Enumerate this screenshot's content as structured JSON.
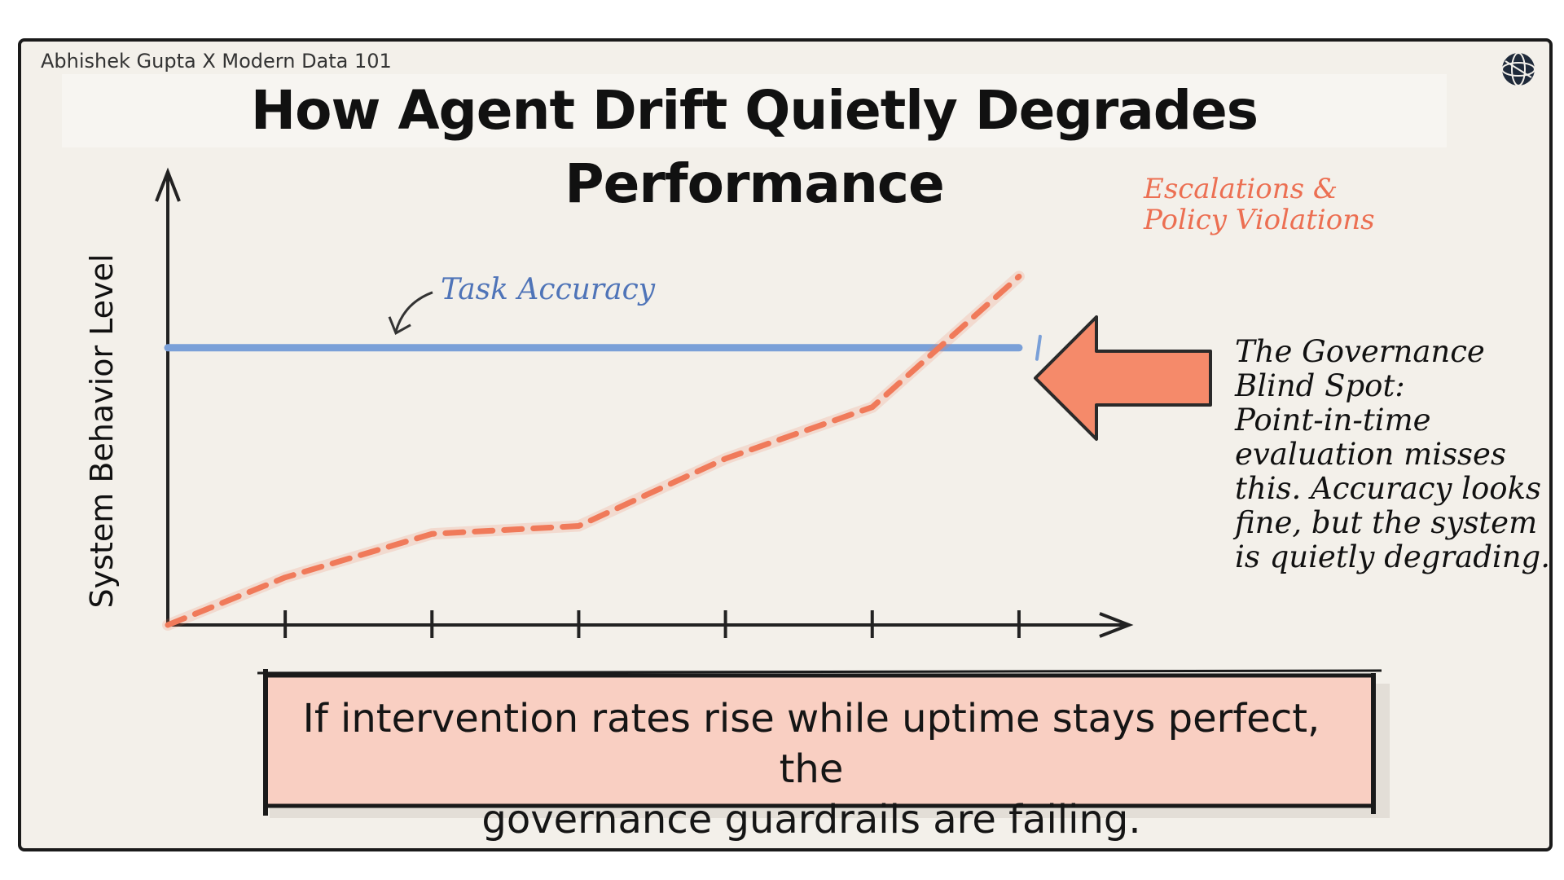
{
  "slide": {
    "byline": "Abhishek Gupta X Modern Data 101",
    "title": "How Agent Drift Quietly Degrades Performance",
    "logo_icon": "globe-icon"
  },
  "chart_data": {
    "type": "line",
    "title": "",
    "xlabel": "",
    "ylabel": "System Behavior Level",
    "x_ticks": [
      "",
      "",
      "",
      "",
      "",
      ""
    ],
    "x": [
      0,
      0.8,
      1.8,
      2.8,
      3.8,
      4.8,
      5.8
    ],
    "xlim": [
      0,
      6.3
    ],
    "ylim": [
      0,
      100
    ],
    "grid": false,
    "series": [
      {
        "name": "Task Accuracy",
        "color": "#7aa0d8",
        "style": "solid",
        "values": [
          70,
          70,
          70,
          70,
          70,
          70,
          70
        ]
      },
      {
        "name": "Escalations & Policy Violations",
        "color": "#f07a5a",
        "style": "dashed",
        "values": [
          0,
          12,
          23,
          25,
          42,
          55,
          88
        ]
      }
    ]
  },
  "callout": {
    "lines": [
      "The Governance",
      "Blind Spot:",
      "Point-in-time",
      "evaluation misses",
      "this. Accuracy looks",
      "fine, but the system",
      "is quietly degrading."
    ],
    "arrow_color": "#f58a6a"
  },
  "banner": {
    "line1": "If intervention rates rise while uptime stays perfect, the",
    "line2": "governance guardrails are failing.",
    "fill_color": "#f9cfc2"
  }
}
